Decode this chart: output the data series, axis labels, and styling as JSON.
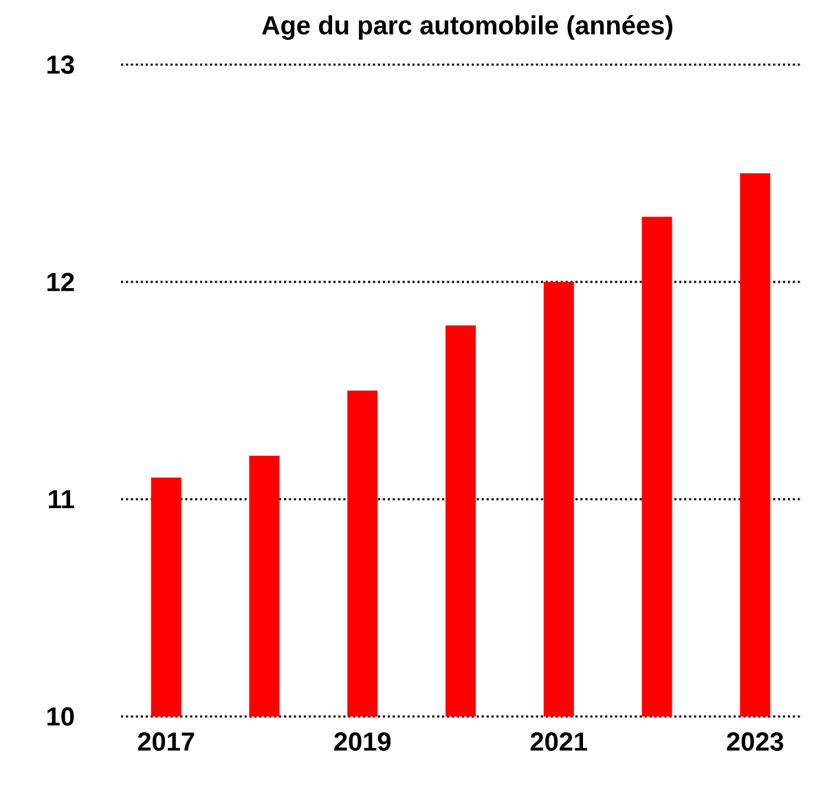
{
  "chart_data": {
    "type": "bar",
    "title": "Age du parc automobile (années)",
    "categories": [
      "2017",
      null,
      "2019",
      null,
      "2021",
      null,
      "2023"
    ],
    "values": [
      11.1,
      11.2,
      11.5,
      11.8,
      12.0,
      12.3,
      12.5
    ],
    "color": "#ff0000",
    "ylim": [
      10,
      13
    ],
    "yticks": [
      10,
      11,
      12,
      13
    ],
    "grid": "y"
  }
}
